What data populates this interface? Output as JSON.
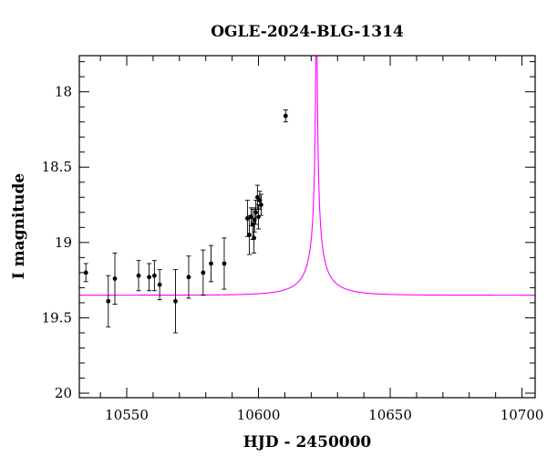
{
  "chart_data": {
    "type": "scatter",
    "title": "OGLE-2024-BLG-1314",
    "xlabel": "HJD - 2450000",
    "ylabel": "I magnitude",
    "xlim": [
      10532,
      10705
    ],
    "ylim": [
      20.03,
      17.76
    ],
    "y_inverted": true,
    "xticks": [
      10550,
      10600,
      10650,
      10700
    ],
    "yticks": [
      18,
      18.5,
      19,
      19.5,
      20
    ],
    "xtick_labels": [
      "10550",
      "10600",
      "10650",
      "10700"
    ],
    "ytick_labels": [
      "18",
      "18.5",
      "19",
      "19.5",
      "20"
    ],
    "grid": false,
    "colors": {
      "points": "#000000",
      "model": "#ff00ff"
    },
    "model": {
      "t0": 10622,
      "tE": 15.5,
      "u0": 0.008,
      "baseline_mag": 19.35,
      "fs": 0.06
    },
    "points": [
      {
        "x": 10534.5,
        "y": 19.2,
        "err": 0.06
      },
      {
        "x": 10543.0,
        "y": 19.39,
        "err": 0.17
      },
      {
        "x": 10545.5,
        "y": 19.24,
        "err": 0.17
      },
      {
        "x": 10554.5,
        "y": 19.22,
        "err": 0.1
      },
      {
        "x": 10558.5,
        "y": 19.23,
        "err": 0.09
      },
      {
        "x": 10560.5,
        "y": 19.22,
        "err": 0.1
      },
      {
        "x": 10562.5,
        "y": 19.28,
        "err": 0.1
      },
      {
        "x": 10568.5,
        "y": 19.39,
        "err": 0.21
      },
      {
        "x": 10573.5,
        "y": 19.23,
        "err": 0.14
      },
      {
        "x": 10579.0,
        "y": 19.2,
        "err": 0.15
      },
      {
        "x": 10582.0,
        "y": 19.14,
        "err": 0.12
      },
      {
        "x": 10587.0,
        "y": 19.14,
        "err": 0.17
      },
      {
        "x": 10595.8,
        "y": 18.84,
        "err": 0.12
      },
      {
        "x": 10596.5,
        "y": 18.95,
        "err": 0.13
      },
      {
        "x": 10597.2,
        "y": 18.83,
        "err": 0.06
      },
      {
        "x": 10597.8,
        "y": 18.88,
        "err": 0.1
      },
      {
        "x": 10598.5,
        "y": 18.85,
        "err": 0.08
      },
      {
        "x": 10599.0,
        "y": 18.8,
        "err": 0.08
      },
      {
        "x": 10599.6,
        "y": 18.7,
        "err": 0.08
      },
      {
        "x": 10600.0,
        "y": 18.83,
        "err": 0.08
      },
      {
        "x": 10600.5,
        "y": 18.72,
        "err": 0.06
      },
      {
        "x": 10601.0,
        "y": 18.75,
        "err": 0.07
      },
      {
        "x": 10598.3,
        "y": 18.97,
        "err": 0.1
      },
      {
        "x": 10610.3,
        "y": 18.16,
        "err": 0.04
      }
    ]
  }
}
